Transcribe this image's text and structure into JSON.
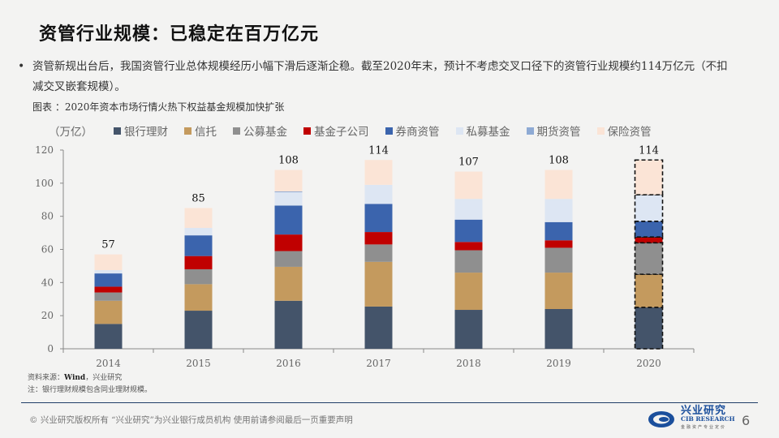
{
  "slide": {
    "title": "资管行业规模：已稳定在百万亿元",
    "bullet_marker": "•",
    "bullet_text": "资管新规出台后，我国资管行业总体规模经历小幅下滑后逐渐企稳。截至2020年末，预计不考虑交叉口径下的资管行业规模约114万亿元（不扣减交叉嵌套规模）。",
    "figure_title": "图表 ：2020年资本市场行情火热下权益基金规模加快扩张",
    "unit_label": "（万亿）",
    "source_label": "资料来源：",
    "source_bold": "Wind",
    "source_rest": "，兴业研究",
    "note": "注：银行理财规模包含同业理财规模。",
    "footer_text": "©  兴业研究版权所有    “兴业研究”为兴业银行成员机构   使用前请参阅最后一页重要声明",
    "logo_cn": "兴业研究",
    "logo_en": "CIB RESEARCH",
    "logo_sub": "金融资产专业定价",
    "page_number": "6"
  },
  "chart_data": {
    "type": "bar",
    "stacked": true,
    "title": "2020年资本市场行情火热下权益基金规模加快扩张",
    "xlabel": "",
    "ylabel": "（万亿）",
    "ylim": [
      0,
      120
    ],
    "yticks": [
      0,
      20,
      40,
      60,
      80,
      100,
      120
    ],
    "grid": false,
    "legend_position": "top",
    "categories": [
      "2014",
      "2015",
      "2016",
      "2017",
      "2018",
      "2019",
      "2020"
    ],
    "totals": [
      57,
      85,
      108,
      114,
      107,
      108,
      114
    ],
    "estimated_category": "2020",
    "series": [
      {
        "name": "银行理财",
        "color": "#44546a",
        "values": [
          15,
          23,
          29,
          25.5,
          23.5,
          24,
          25
        ]
      },
      {
        "name": "信托",
        "color": "#c49a5e",
        "values": [
          14,
          16,
          20.5,
          27,
          22.5,
          22,
          20
        ]
      },
      {
        "name": "公募基金",
        "color": "#8f8f8f",
        "values": [
          5,
          9,
          9.5,
          10.5,
          13.5,
          15,
          19
        ]
      },
      {
        "name": "基金子公司",
        "color": "#c00000",
        "values": [
          3.5,
          8,
          10,
          7.5,
          5,
          4.5,
          3.5
        ]
      },
      {
        "name": "券商资管",
        "color": "#3b64ad",
        "values": [
          8,
          12.5,
          17.5,
          17,
          13.5,
          11,
          9.5
        ]
      },
      {
        "name": "私募基金",
        "color": "#dde6f3",
        "values": [
          2,
          4.5,
          8,
          11.5,
          12.5,
          14,
          16
        ]
      },
      {
        "name": "期货资管",
        "color": "#8eaad4",
        "values": [
          0,
          0,
          0.5,
          0,
          0,
          0,
          0
        ]
      },
      {
        "name": "保险资管",
        "color": "#fbe4d6",
        "values": [
          9.5,
          12,
          13,
          15,
          16.5,
          17.5,
          21
        ]
      }
    ]
  }
}
